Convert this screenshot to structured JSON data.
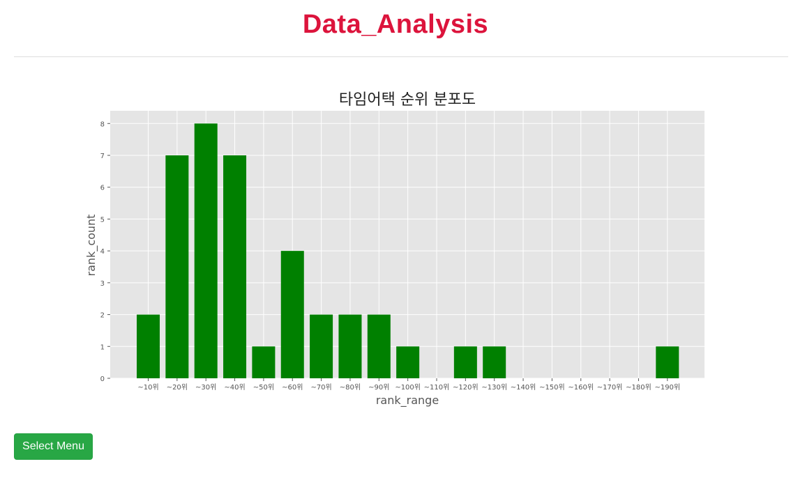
{
  "header": {
    "title": "Data_Analysis"
  },
  "menu": {
    "select_label": "Select Menu"
  },
  "chart_data": {
    "type": "bar",
    "title": "타임어택 순위 분포도",
    "xlabel": "rank_range",
    "ylabel": "rank_count",
    "categories": [
      "~10위",
      "~20위",
      "~30위",
      "~40위",
      "~50위",
      "~60위",
      "~70위",
      "~80위",
      "~90위",
      "~100위",
      "~110위",
      "~120위",
      "~130위",
      "~140위",
      "~150위",
      "~160위",
      "~170위",
      "~180위",
      "~190위"
    ],
    "values": [
      2,
      7,
      8,
      7,
      1,
      4,
      2,
      2,
      2,
      1,
      0,
      1,
      1,
      0,
      0,
      0,
      0,
      0,
      1
    ],
    "ylim": [
      0,
      8.4
    ],
    "yticks": [
      0,
      1,
      2,
      3,
      4,
      5,
      6,
      7,
      8
    ],
    "grid": true,
    "bar_color": "#008000",
    "plot_background": "#e5e5e5"
  }
}
